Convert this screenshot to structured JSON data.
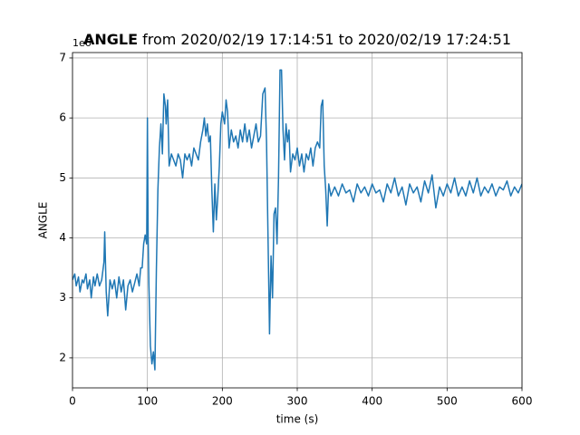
{
  "chart_data": {
    "type": "line",
    "title_parts": [
      "ANGLE",
      "from 2020/02/19 17:14:51 to 2020/02/19 17:24:51"
    ],
    "offset_text": "1e6",
    "xlabel": "time (s)",
    "ylabel": "ANGLE",
    "color": "#1f77b4",
    "grid": true,
    "xlim": [
      0,
      600
    ],
    "xticks": [
      0,
      100,
      200,
      300,
      400,
      500,
      600
    ],
    "ylim": [
      1.5,
      7.09
    ],
    "yticks": [
      2,
      3,
      4,
      5,
      6,
      7
    ],
    "x": [
      0,
      3,
      5,
      8,
      10,
      13,
      15,
      18,
      20,
      23,
      25,
      28,
      30,
      33,
      36,
      39,
      42,
      43,
      45,
      47,
      50,
      53,
      56,
      59,
      62,
      65,
      68,
      71,
      74,
      77,
      80,
      83,
      86,
      89,
      91,
      93,
      95,
      97,
      99,
      100,
      101,
      102,
      104,
      106,
      108,
      110,
      112,
      114,
      116,
      118,
      120,
      122,
      124,
      125,
      127,
      129,
      132,
      135,
      138,
      141,
      144,
      147,
      150,
      153,
      156,
      159,
      162,
      165,
      168,
      171,
      174,
      176,
      178,
      180,
      182,
      184,
      186,
      188,
      190,
      192,
      194,
      196,
      198,
      200,
      203,
      205,
      207,
      209,
      212,
      215,
      218,
      221,
      224,
      227,
      230,
      233,
      236,
      239,
      242,
      245,
      248,
      251,
      254,
      257,
      259,
      261,
      263,
      265,
      267,
      269,
      271,
      273,
      275,
      277,
      279,
      281,
      283,
      285,
      287,
      289,
      291,
      294,
      297,
      300,
      303,
      306,
      309,
      312,
      315,
      318,
      321,
      324,
      327,
      330,
      332,
      334,
      336,
      338,
      340,
      342,
      345,
      350,
      355,
      360,
      365,
      370,
      375,
      380,
      385,
      390,
      395,
      400,
      405,
      410,
      415,
      420,
      425,
      430,
      435,
      440,
      445,
      450,
      455,
      460,
      465,
      470,
      475,
      480,
      485,
      490,
      495,
      500,
      505,
      510,
      515,
      520,
      525,
      530,
      535,
      540,
      545,
      550,
      555,
      560,
      565,
      570,
      575,
      580,
      585,
      590,
      595,
      600
    ],
    "values": [
      3.3,
      3.4,
      3.2,
      3.35,
      3.1,
      3.3,
      3.25,
      3.4,
      3.15,
      3.3,
      3.0,
      3.35,
      3.2,
      3.4,
      3.2,
      3.3,
      3.6,
      4.1,
      3.1,
      2.7,
      3.3,
      3.15,
      3.3,
      3.0,
      3.35,
      3.1,
      3.3,
      2.8,
      3.2,
      3.3,
      3.1,
      3.25,
      3.4,
      3.2,
      3.5,
      3.5,
      3.9,
      4.05,
      3.9,
      6.0,
      4.0,
      3.2,
      2.2,
      1.9,
      2.1,
      1.8,
      3.5,
      4.8,
      5.5,
      5.9,
      5.4,
      6.4,
      6.2,
      5.9,
      6.3,
      5.2,
      5.4,
      5.3,
      5.2,
      5.4,
      5.3,
      5.0,
      5.4,
      5.3,
      5.4,
      5.2,
      5.5,
      5.4,
      5.3,
      5.6,
      5.8,
      6.0,
      5.7,
      5.9,
      5.6,
      5.7,
      4.8,
      4.1,
      4.9,
      4.3,
      4.7,
      5.2,
      5.9,
      6.1,
      5.9,
      6.3,
      6.1,
      5.5,
      5.8,
      5.6,
      5.7,
      5.5,
      5.8,
      5.6,
      5.9,
      5.6,
      5.8,
      5.5,
      5.7,
      5.9,
      5.6,
      5.7,
      6.4,
      6.5,
      5.6,
      4.0,
      2.4,
      3.7,
      3.0,
      4.4,
      4.5,
      3.9,
      5.0,
      6.8,
      6.8,
      5.8,
      5.3,
      5.9,
      5.6,
      5.8,
      5.1,
      5.4,
      5.3,
      5.5,
      5.2,
      5.4,
      5.1,
      5.4,
      5.3,
      5.5,
      5.2,
      5.5,
      5.6,
      5.5,
      6.2,
      6.3,
      5.2,
      4.8,
      4.2,
      4.9,
      4.7,
      4.85,
      4.7,
      4.9,
      4.75,
      4.8,
      4.6,
      4.9,
      4.75,
      4.85,
      4.7,
      4.9,
      4.75,
      4.8,
      4.6,
      4.9,
      4.75,
      5.0,
      4.7,
      4.85,
      4.55,
      4.9,
      4.75,
      4.85,
      4.6,
      4.95,
      4.75,
      5.05,
      4.5,
      4.85,
      4.7,
      4.9,
      4.75,
      5.0,
      4.7,
      4.85,
      4.7,
      4.95,
      4.75,
      5.0,
      4.7,
      4.85,
      4.75,
      4.9,
      4.7,
      4.85,
      4.8,
      4.95,
      4.7,
      4.85,
      4.75,
      4.9
    ]
  }
}
